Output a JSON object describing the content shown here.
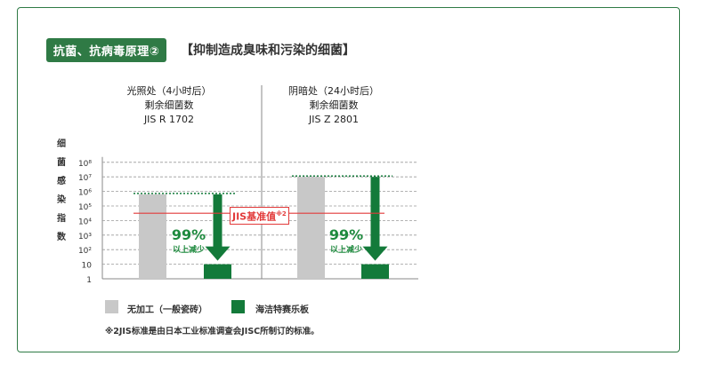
{
  "header": {
    "badge": "抗菌、抗病毒原理②",
    "subtitle": "【抑制造成臭味和污染的细菌】"
  },
  "chart_data": {
    "type": "bar",
    "yscale": "log",
    "ylabel": "细菌感染指数",
    "ylim": [
      1,
      100000000
    ],
    "yticks": [
      "1",
      "10",
      "10²",
      "10³",
      "10⁴",
      "10⁵",
      "10⁶",
      "10⁷",
      "10⁸"
    ],
    "grid": true,
    "panels": [
      {
        "heading": [
          "光照处（4小时后）",
          "剩余细菌数",
          "JIS R 1702"
        ],
        "untreated": 630000,
        "treated": 10
      },
      {
        "heading": [
          "阴暗处（24小时后）",
          "剩余细菌数",
          "JIS Z 2801"
        ],
        "untreated": 10000000,
        "treated": 10
      }
    ],
    "reference": {
      "label": "JIS基准值",
      "mark": "※2",
      "value": 31600
    },
    "annotation": {
      "percent": "99%",
      "text": "以上减少"
    },
    "series": [
      {
        "name": "无加工（一般瓷砖）",
        "color": "#c8c8c8"
      },
      {
        "name": "海洁特赛乐板",
        "color": "#137a3a"
      }
    ]
  },
  "footnote": "※2JIS标准是由日本工业标准调查会JISC所制订的标准。"
}
